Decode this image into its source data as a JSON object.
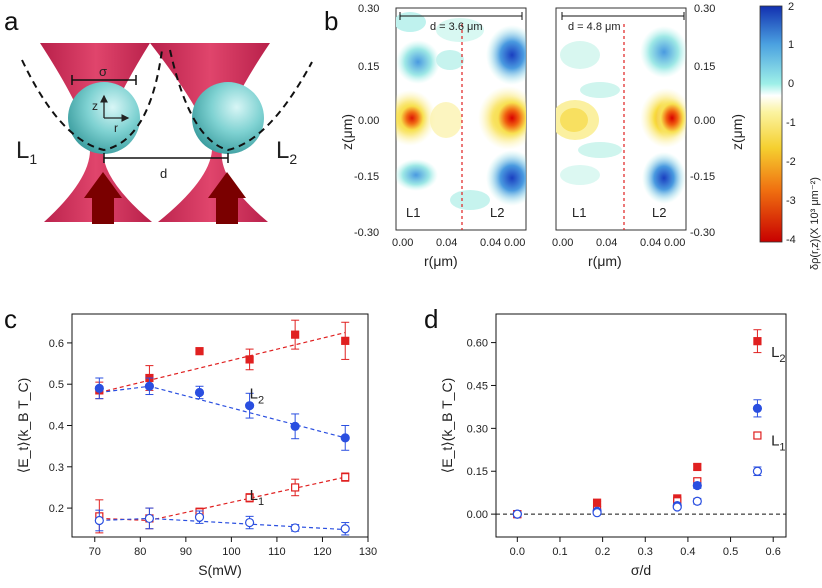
{
  "panels": {
    "a": {
      "label": "a",
      "sigma": "σ",
      "z": "z",
      "r": "r",
      "d": "d",
      "L1": "L",
      "L1_sub": "1",
      "L2": "L",
      "L2_sub": "2"
    },
    "b": {
      "label": "b",
      "left_map": {
        "d_label": "d = 3.6 μm",
        "L1": "L1",
        "L2": "L2"
      },
      "right_map": {
        "d_label": "d = 4.8 μm",
        "L1": "L1",
        "L2": "L2"
      },
      "yticks": [
        "0.30",
        "0.15",
        "0.00",
        "-0.15",
        "-0.30"
      ],
      "xticks": [
        "0.00",
        "0.04",
        "0.04",
        "0.00"
      ],
      "ylabel": "z(μm)",
      "xlabel": "r(μm)",
      "colorbar": {
        "ticks": [
          "2",
          "1",
          "0",
          "-1",
          "-2",
          "-3",
          "-4"
        ],
        "label": "δρ(r,z)(X 10³ μm⁻²)",
        "colors": {
          "blue": "#1a3fbf",
          "cyan": "#6ee0e0",
          "yellow": "#f5e84a",
          "red": "#d40000"
        }
      }
    }
  },
  "chart_data": [
    {
      "panel": "c",
      "type": "scatter",
      "title": "",
      "xlabel": "S(mW)",
      "ylabel": "⟨E_t⟩(k_B T_C)",
      "xlim": [
        65,
        130
      ],
      "ylim": [
        0.13,
        0.67
      ],
      "xticks": [
        70,
        80,
        90,
        100,
        110,
        120,
        130
      ],
      "yticks": [
        0.2,
        0.3,
        0.4,
        0.5,
        0.6
      ],
      "series": [
        {
          "name": "L2 filled",
          "color": "#e02020",
          "marker": "square",
          "filled": true,
          "x": [
            71,
            82,
            93,
            104,
            114,
            125
          ],
          "y": [
            0.485,
            0.515,
            0.58,
            0.56,
            0.62,
            0.605
          ],
          "err": [
            0.02,
            0.03,
            0.0,
            0.025,
            0.035,
            0.045
          ]
        },
        {
          "name": "L2 open",
          "color": "#e02020",
          "marker": "square",
          "filled": false,
          "x": [
            71,
            82,
            93,
            104,
            114,
            125
          ],
          "y": [
            0.18,
            0.175,
            0.19,
            0.225,
            0.25,
            0.275
          ],
          "err": [
            0.04,
            0.025,
            0.01,
            0.01,
            0.02,
            0.01
          ]
        },
        {
          "name": "L1 filled",
          "color": "#2a4fe0",
          "marker": "circle",
          "filled": true,
          "x": [
            71,
            82,
            93,
            104,
            114,
            125
          ],
          "y": [
            0.49,
            0.495,
            0.48,
            0.448,
            0.398,
            0.37
          ],
          "err": [
            0.025,
            0.02,
            0.015,
            0.03,
            0.03,
            0.03
          ]
        },
        {
          "name": "L1 open",
          "color": "#2a4fe0",
          "marker": "circle",
          "filled": false,
          "x": [
            71,
            82,
            93,
            104,
            114,
            125
          ],
          "y": [
            0.17,
            0.175,
            0.178,
            0.165,
            0.152,
            0.15
          ],
          "err": [
            0.025,
            0.025,
            0.015,
            0.015,
            0.008,
            0.015
          ]
        }
      ],
      "fits": [
        {
          "color": "#e02020",
          "x": [
            71,
            125
          ],
          "y": [
            0.48,
            0.625
          ]
        },
        {
          "color": "#e02020",
          "x": [
            71,
            82,
            125
          ],
          "y": [
            0.175,
            0.17,
            0.275
          ]
        },
        {
          "color": "#2a4fe0",
          "x": [
            71,
            82,
            125
          ],
          "y": [
            0.48,
            0.495,
            0.37
          ]
        },
        {
          "color": "#2a4fe0",
          "x": [
            71,
            82,
            125
          ],
          "y": [
            0.17,
            0.175,
            0.148
          ]
        }
      ],
      "annotations": [
        {
          "text": "L",
          "sub": "2",
          "color": "#e02020",
          "x": 104,
          "y": 0.465
        },
        {
          "text": "L",
          "sub": "1",
          "color": "#222222",
          "x": 104,
          "y": 0.22
        }
      ]
    },
    {
      "panel": "d",
      "type": "scatter",
      "title": "",
      "xlabel": "σ/d",
      "ylabel": "⟨E_t⟩(k_B T_C)",
      "xlim": [
        -0.05,
        0.63
      ],
      "ylim": [
        -0.08,
        0.7
      ],
      "xticks": [
        0.0,
        0.1,
        0.2,
        0.3,
        0.4,
        0.5,
        0.6
      ],
      "xticklabels": [
        "0.0",
        "0.1",
        "0.2",
        "0.3",
        "0.4",
        "0.5",
        "0.6"
      ],
      "yticks": [
        0.0,
        0.15,
        0.3,
        0.45,
        0.6
      ],
      "yticklabels": [
        "0.00",
        "0.15",
        "0.30",
        "0.45",
        "0.60"
      ],
      "zero_line": true,
      "series": [
        {
          "name": "L2 filled",
          "color": "#e02020",
          "marker": "square",
          "filled": true,
          "x": [
            0.0,
            0.187,
            0.375,
            0.422,
            0.563
          ],
          "y": [
            0.0,
            0.04,
            0.055,
            0.165,
            0.605
          ],
          "err": [
            0,
            0.005,
            0.005,
            0.01,
            0.04
          ]
        },
        {
          "name": "L2 open",
          "color": "#e02020",
          "marker": "square",
          "filled": false,
          "x": [
            0.0,
            0.187,
            0.375,
            0.422,
            0.563
          ],
          "y": [
            0.0,
            0.015,
            0.045,
            0.115,
            0.275
          ],
          "err": [
            0,
            0.005,
            0.005,
            0.01,
            0.01
          ]
        },
        {
          "name": "L1 filled",
          "color": "#2a4fe0",
          "marker": "circle",
          "filled": true,
          "x": [
            0.0,
            0.187,
            0.375,
            0.422,
            0.563
          ],
          "y": [
            0.0,
            0.01,
            0.03,
            0.1,
            0.37
          ],
          "err": [
            0,
            0.005,
            0.005,
            0.01,
            0.03
          ]
        },
        {
          "name": "L1 open",
          "color": "#2a4fe0",
          "marker": "circle",
          "filled": false,
          "x": [
            0.0,
            0.187,
            0.375,
            0.422,
            0.563
          ],
          "y": [
            0.0,
            0.005,
            0.025,
            0.045,
            0.15
          ],
          "err": [
            0,
            0.005,
            0.005,
            0.01,
            0.015
          ]
        }
      ],
      "annotations": [
        {
          "text": "L",
          "sub": "2",
          "color": "#e02020",
          "x": 0.595,
          "y": 0.55
        },
        {
          "text": "L",
          "sub": "1",
          "color": "#222222",
          "x": 0.595,
          "y": 0.24
        }
      ]
    }
  ]
}
